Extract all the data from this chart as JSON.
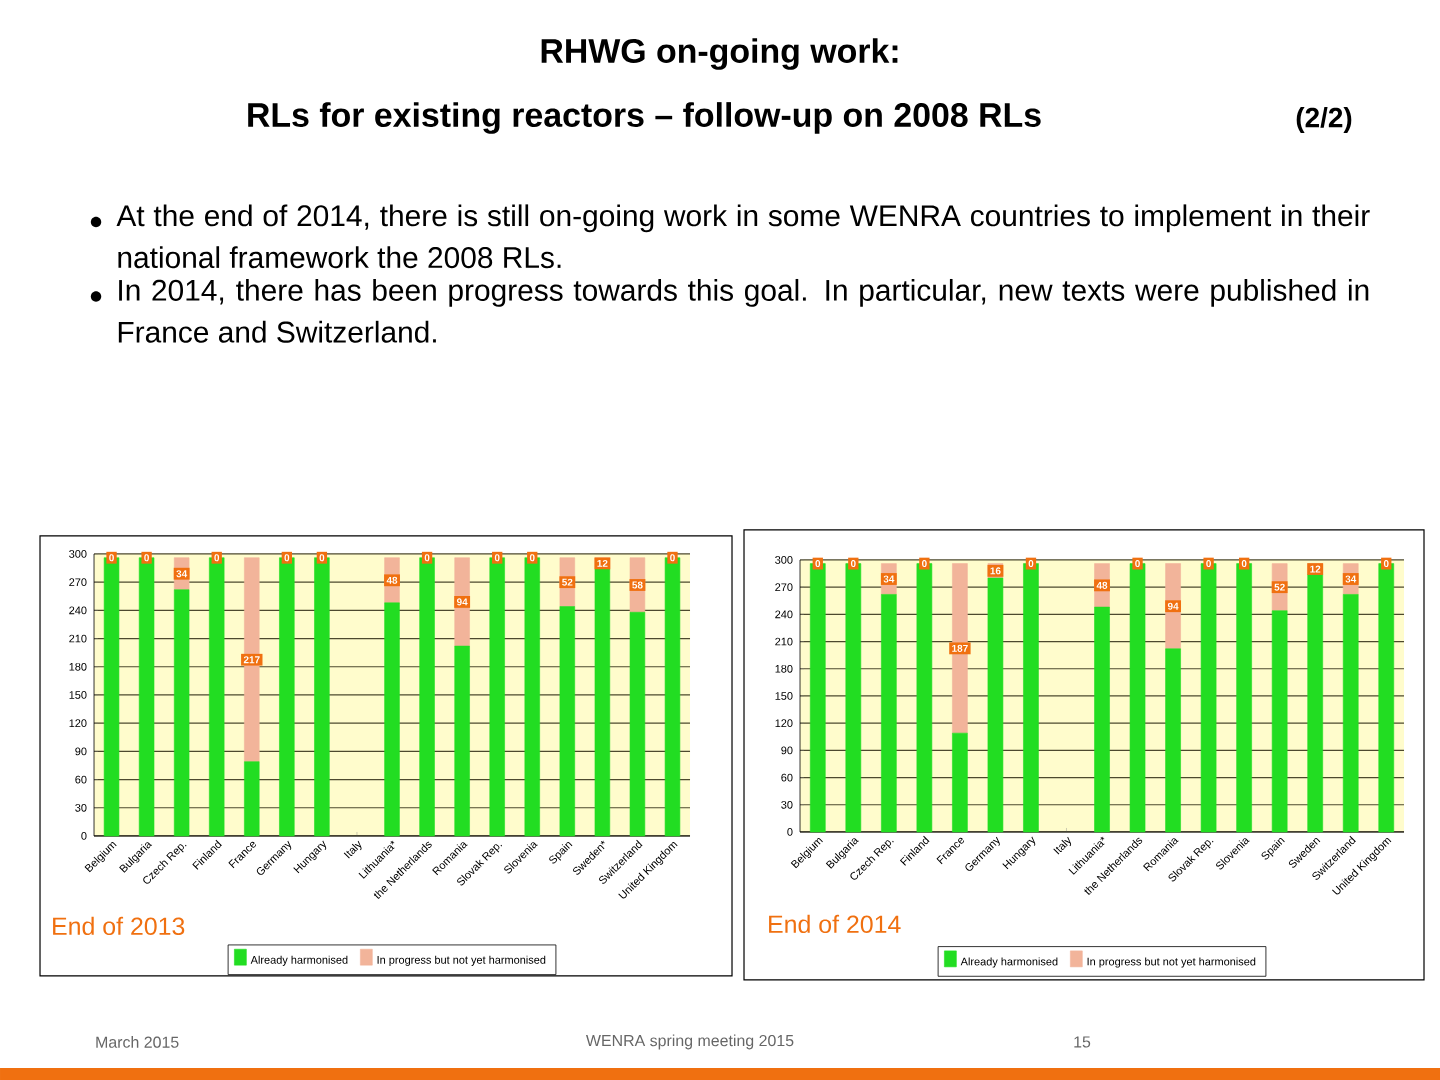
{
  "chart_data": [
    {
      "type": "bar",
      "stacked": true,
      "subtitle": "End of 2013",
      "categories": [
        "Belgium",
        "Bulgaria",
        "Czech Rep.",
        "Finland",
        "France",
        "Germany",
        "Hungary",
        "Italy",
        "Lithuania*",
        "the Netherlands",
        "Romania",
        "Slovak Rep.",
        "Slovenia",
        "Spain",
        "Sweden*",
        "Switzerland",
        "United Kingdom"
      ],
      "series": [
        {
          "name": "Already harmonised",
          "color": "#22dd22",
          "values": [
            296,
            296,
            262,
            296,
            79,
            296,
            296,
            null,
            248,
            296,
            202,
            296,
            296,
            244,
            284,
            238,
            296
          ]
        },
        {
          "name": "In progress but not yet harmonised",
          "color": "#f2b49a",
          "values": [
            0,
            0,
            34,
            0,
            217,
            0,
            0,
            null,
            48,
            0,
            94,
            0,
            0,
            52,
            12,
            58,
            0
          ],
          "value_labels": [
            "0",
            "0",
            "34",
            "0",
            "217",
            "0",
            "0",
            null,
            "48",
            "0",
            "94",
            "0",
            "0",
            "52",
            "12",
            "58",
            "0"
          ]
        }
      ],
      "ylim": [
        0,
        300
      ],
      "yticks": [
        0,
        30,
        60,
        90,
        120,
        150,
        180,
        210,
        240,
        270,
        300
      ],
      "grid": "y",
      "legend": "bottom",
      "annotations": [
        "RHWG on-going work:",
        "RLs for existing reactors – follow-up on 2008 RLs",
        "(2/2)",
        "At the end of 2014, there is still on-going work in some WENRA countries to implement in their national framework the 2008 RLs.",
        "In 2014, there has been progress towards this goal. In particular, new texts were published in France and Switzerland."
      ]
    },
    {
      "type": "bar",
      "stacked": true,
      "subtitle": "End of 2014",
      "categories": [
        "Belgium",
        "Bulgaria",
        "Czech Rep.",
        "Finland",
        "France",
        "Germany",
        "Hungary",
        "Italy",
        "Lithuania*",
        "the Netherlands",
        "Romania",
        "Slovak Rep.",
        "Slovenia",
        "Spain",
        "Sweden",
        "Switzerland",
        "United Kingdom"
      ],
      "series": [
        {
          "name": "Already harmonised",
          "color": "#22dd22",
          "values": [
            296,
            296,
            262,
            296,
            109,
            280,
            296,
            null,
            248,
            296,
            202,
            296,
            296,
            244,
            284,
            262,
            296
          ]
        },
        {
          "name": "In progress but not yet harmonised",
          "color": "#f2b49a",
          "values": [
            0,
            0,
            34,
            0,
            187,
            16,
            0,
            null,
            48,
            0,
            94,
            0,
            0,
            52,
            12,
            34,
            0
          ],
          "value_labels": [
            "0",
            "0",
            "34",
            "0",
            "187",
            "16",
            "0",
            null,
            "48",
            "0",
            "94",
            "0",
            "0",
            "52",
            "12",
            "34",
            "0"
          ]
        }
      ],
      "ylim": [
        0,
        300
      ],
      "yticks": [
        0,
        30,
        60,
        90,
        120,
        150,
        180,
        210,
        240,
        270,
        300
      ],
      "grid": "y",
      "legend": "bottom",
      "annotations": [
        "March 2015",
        "WENRA spring meeting 2015",
        "15"
      ]
    }
  ]
}
